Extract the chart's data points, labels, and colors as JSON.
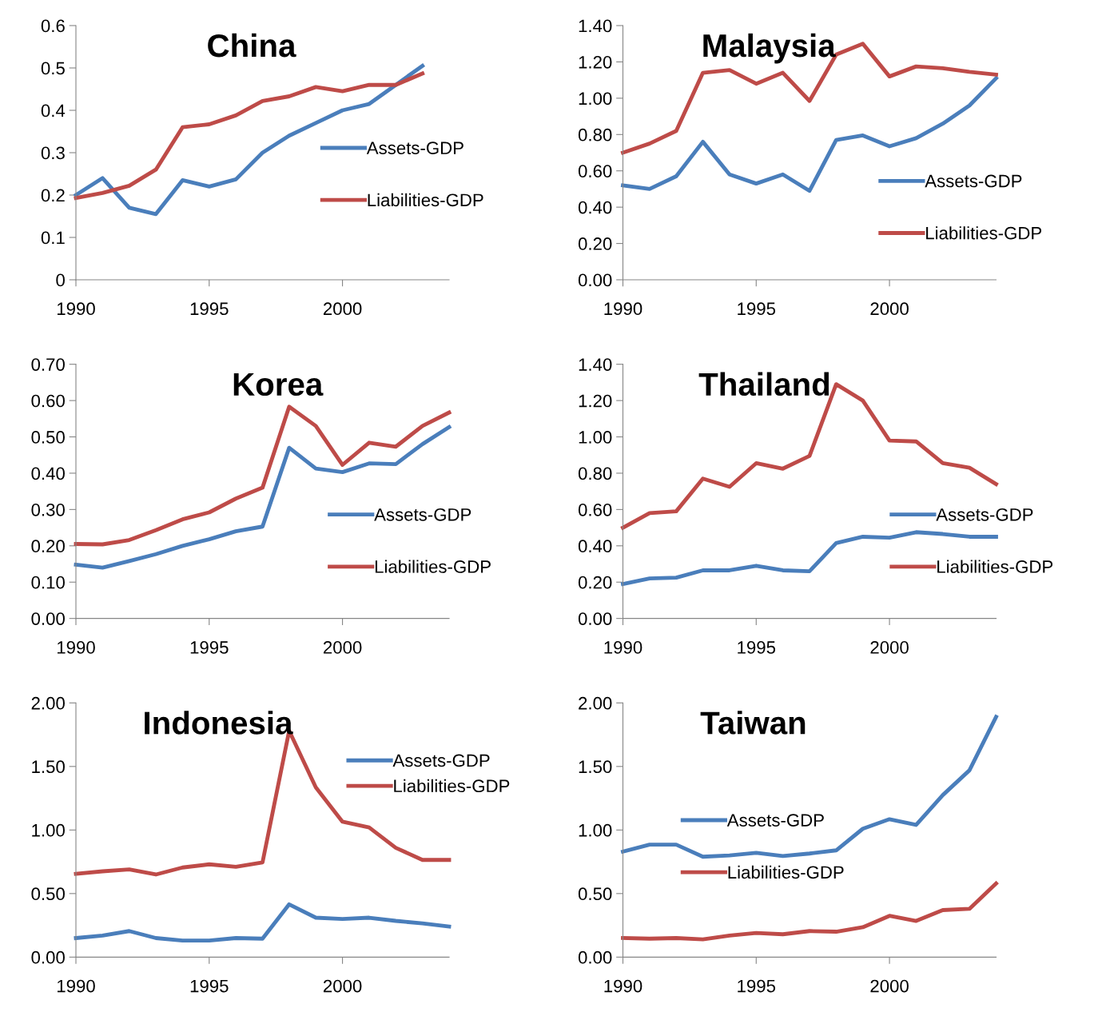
{
  "chart_data": [
    {
      "type": "line",
      "title": "China",
      "x": [
        1990,
        1991,
        1992,
        1993,
        1994,
        1995,
        1996,
        1997,
        1998,
        1999,
        2000,
        2001,
        2002,
        2003
      ],
      "xlim": [
        1990,
        2004
      ],
      "xticks": [
        1990,
        1995,
        2000
      ],
      "ylim": [
        0,
        0.6
      ],
      "yticks": [
        0,
        0.1,
        0.2,
        0.3,
        0.4,
        0.5,
        0.6
      ],
      "legend": "right",
      "grid": false,
      "marker": "none",
      "line_style": "solid",
      "series": [
        {
          "name": "Assets-GDP",
          "color": "#4a7ebb",
          "values": [
            0.2,
            0.24,
            0.17,
            0.155,
            0.235,
            0.22,
            0.237,
            0.3,
            0.34,
            0.37,
            0.4,
            0.415,
            0.46,
            0.505
          ]
        },
        {
          "name": "Liabilities-GDP",
          "color": "#be4b48",
          "values": [
            0.193,
            0.205,
            0.222,
            0.26,
            0.36,
            0.367,
            0.388,
            0.422,
            0.433,
            0.455,
            0.445,
            0.46,
            0.46,
            0.487
          ]
        }
      ]
    },
    {
      "type": "line",
      "title": "Malaysia",
      "x": [
        1990,
        1991,
        1992,
        1993,
        1994,
        1995,
        1996,
        1997,
        1998,
        1999,
        2000,
        2001,
        2002,
        2003,
        2004
      ],
      "xlim": [
        1990,
        2004
      ],
      "xticks": [
        1990,
        1995,
        2000
      ],
      "ylim": [
        0,
        1.4
      ],
      "yticks": [
        {
          "value": 0,
          "label": "0.00"
        },
        {
          "value": 0.2,
          "label": "0.20"
        },
        {
          "value": 0.4,
          "label": "0.40"
        },
        {
          "value": 0.6,
          "label": "0.60"
        },
        {
          "value": 0.8,
          "label": "0.80"
        },
        {
          "value": 1.0,
          "label": "1.00"
        },
        {
          "value": 1.2,
          "label": "1.20"
        },
        {
          "value": 1.4,
          "label": "1.40"
        }
      ],
      "legend": "right",
      "grid": false,
      "marker": "none",
      "line_style": "solid",
      "series": [
        {
          "name": "Assets-GDP",
          "color": "#4a7ebb",
          "values": [
            0.52,
            0.5,
            0.57,
            0.76,
            0.58,
            0.53,
            0.58,
            0.49,
            0.77,
            0.795,
            0.735,
            0.78,
            0.86,
            0.96,
            1.11
          ]
        },
        {
          "name": "Liabilities-GDP",
          "color": "#be4b48",
          "values": [
            0.7,
            0.75,
            0.82,
            1.14,
            1.155,
            1.08,
            1.14,
            0.985,
            1.24,
            1.3,
            1.12,
            1.175,
            1.165,
            1.145,
            1.13
          ]
        }
      ]
    },
    {
      "type": "line",
      "title": "Korea",
      "x": [
        1990,
        1991,
        1992,
        1993,
        1994,
        1995,
        1996,
        1997,
        1998,
        1999,
        2000,
        2001,
        2002,
        2003,
        2004
      ],
      "xlim": [
        1990,
        2004
      ],
      "xticks": [
        1990,
        1995,
        2000
      ],
      "ylim": [
        0,
        0.7
      ],
      "yticks": [
        {
          "value": 0,
          "label": "0.00"
        },
        {
          "value": 0.1,
          "label": "0.10"
        },
        {
          "value": 0.2,
          "label": "0.20"
        },
        {
          "value": 0.3,
          "label": "0.30"
        },
        {
          "value": 0.4,
          "label": "0.40"
        },
        {
          "value": 0.5,
          "label": "0.50"
        },
        {
          "value": 0.6,
          "label": "0.60"
        },
        {
          "value": 0.7,
          "label": "0.70"
        }
      ],
      "legend": "right",
      "grid": false,
      "marker": "none",
      "line_style": "solid",
      "series": [
        {
          "name": "Assets-GDP",
          "color": "#4a7ebb",
          "values": [
            0.148,
            0.14,
            0.158,
            0.177,
            0.2,
            0.218,
            0.24,
            0.253,
            0.47,
            0.413,
            0.403,
            0.427,
            0.425,
            0.48,
            0.527
          ]
        },
        {
          "name": "Liabilities-GDP",
          "color": "#be4b48",
          "values": [
            0.205,
            0.204,
            0.216,
            0.243,
            0.273,
            0.292,
            0.33,
            0.36,
            0.583,
            0.53,
            0.423,
            0.484,
            0.473,
            0.53,
            0.567
          ]
        }
      ]
    },
    {
      "type": "line",
      "title": "Thailand",
      "x": [
        1990,
        1991,
        1992,
        1993,
        1994,
        1995,
        1996,
        1997,
        1998,
        1999,
        2000,
        2001,
        2002,
        2003,
        2004
      ],
      "xlim": [
        1990,
        2004
      ],
      "xticks": [
        1990,
        1995,
        2000
      ],
      "ylim": [
        0,
        1.4
      ],
      "yticks": [
        {
          "value": 0,
          "label": "0.00"
        },
        {
          "value": 0.2,
          "label": "0.20"
        },
        {
          "value": 0.4,
          "label": "0.40"
        },
        {
          "value": 0.6,
          "label": "0.60"
        },
        {
          "value": 0.8,
          "label": "0.80"
        },
        {
          "value": 1.0,
          "label": "1.00"
        },
        {
          "value": 1.2,
          "label": "1.20"
        },
        {
          "value": 1.4,
          "label": "1.40"
        }
      ],
      "legend": "right",
      "grid": false,
      "marker": "none",
      "line_style": "solid",
      "series": [
        {
          "name": "Assets-GDP",
          "color": "#4a7ebb",
          "values": [
            0.19,
            0.22,
            0.225,
            0.265,
            0.265,
            0.29,
            0.265,
            0.26,
            0.415,
            0.45,
            0.445,
            0.475,
            0.465,
            0.45,
            0.45
          ]
        },
        {
          "name": "Liabilities-GDP",
          "color": "#be4b48",
          "values": [
            0.5,
            0.58,
            0.59,
            0.77,
            0.725,
            0.855,
            0.825,
            0.895,
            1.29,
            1.2,
            0.98,
            0.975,
            0.855,
            0.83,
            0.74
          ]
        }
      ]
    },
    {
      "type": "line",
      "title": "Indonesia",
      "x": [
        1990,
        1991,
        1992,
        1993,
        1994,
        1995,
        1996,
        1997,
        1998,
        1999,
        2000,
        2001,
        2002,
        2003,
        2004
      ],
      "xlim": [
        1990,
        2004
      ],
      "xticks": [
        1990,
        1995,
        2000
      ],
      "ylim": [
        0,
        2.0
      ],
      "yticks": [
        {
          "value": 0,
          "label": "0.00"
        },
        {
          "value": 0.5,
          "label": "0.50"
        },
        {
          "value": 1.0,
          "label": "1.00"
        },
        {
          "value": 1.5,
          "label": "1.50"
        },
        {
          "value": 2.0,
          "label": "2.00"
        }
      ],
      "legend": "top right",
      "grid": false,
      "marker": "none",
      "line_style": "solid",
      "series": [
        {
          "name": "Assets-GDP",
          "color": "#4a7ebb",
          "values": [
            0.15,
            0.17,
            0.205,
            0.15,
            0.13,
            0.13,
            0.15,
            0.145,
            0.415,
            0.31,
            0.3,
            0.31,
            0.285,
            0.265,
            0.24
          ]
        },
        {
          "name": "Liabilities-GDP",
          "color": "#be4b48",
          "values": [
            0.655,
            0.675,
            0.69,
            0.65,
            0.705,
            0.73,
            0.71,
            0.745,
            1.78,
            1.335,
            1.065,
            1.02,
            0.86,
            0.765,
            0.765
          ]
        }
      ]
    },
    {
      "type": "line",
      "title": "Taiwan",
      "x": [
        1990,
        1991,
        1992,
        1993,
        1994,
        1995,
        1996,
        1997,
        1998,
        1999,
        2000,
        2001,
        2002,
        2003,
        2004
      ],
      "xlim": [
        1990,
        2004
      ],
      "xticks": [
        1990,
        1995,
        2000
      ],
      "ylim": [
        0,
        2.0
      ],
      "yticks": [
        {
          "value": 0,
          "label": "0.00"
        },
        {
          "value": 0.5,
          "label": "0.50"
        },
        {
          "value": 1.0,
          "label": "1.00"
        },
        {
          "value": 1.5,
          "label": "1.50"
        },
        {
          "value": 2.0,
          "label": "2.00"
        }
      ],
      "legend": "left",
      "grid": false,
      "marker": "none",
      "line_style": "solid",
      "series": [
        {
          "name": "Assets-GDP",
          "color": "#4a7ebb",
          "values": [
            0.83,
            0.885,
            0.885,
            0.79,
            0.8,
            0.82,
            0.795,
            0.815,
            0.84,
            1.01,
            1.085,
            1.04,
            1.275,
            1.47,
            1.89
          ]
        },
        {
          "name": "Liabilities-GDP",
          "color": "#be4b48",
          "values": [
            0.15,
            0.145,
            0.15,
            0.14,
            0.17,
            0.19,
            0.18,
            0.205,
            0.2,
            0.235,
            0.325,
            0.285,
            0.37,
            0.38,
            0.58
          ]
        }
      ]
    }
  ]
}
